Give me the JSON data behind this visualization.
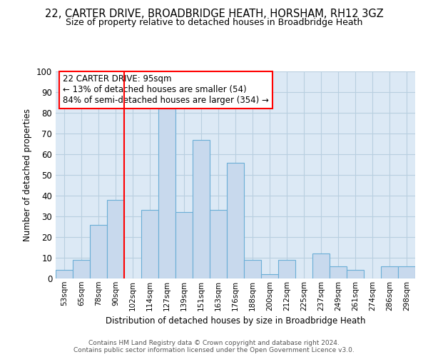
{
  "title1": "22, CARTER DRIVE, BROADBRIDGE HEATH, HORSHAM, RH12 3GZ",
  "title2": "Size of property relative to detached houses in Broadbridge Heath",
  "xlabel": "Distribution of detached houses by size in Broadbridge Heath",
  "ylabel": "Number of detached properties",
  "footer1": "Contains HM Land Registry data © Crown copyright and database right 2024.",
  "footer2": "Contains public sector information licensed under the Open Government Licence v3.0.",
  "bin_labels": [
    "53sqm",
    "65sqm",
    "78sqm",
    "90sqm",
    "102sqm",
    "114sqm",
    "127sqm",
    "139sqm",
    "151sqm",
    "163sqm",
    "176sqm",
    "188sqm",
    "200sqm",
    "212sqm",
    "225sqm",
    "237sqm",
    "249sqm",
    "261sqm",
    "274sqm",
    "286sqm",
    "298sqm"
  ],
  "bar_values": [
    4,
    9,
    26,
    38,
    0,
    33,
    82,
    32,
    67,
    33,
    56,
    9,
    2,
    9,
    0,
    12,
    6,
    4,
    0,
    6,
    6
  ],
  "bar_color": "#c8d9ed",
  "bar_edgecolor": "#6aaed6",
  "annotation_title": "22 CARTER DRIVE: 95sqm",
  "annotation_line1": "← 13% of detached houses are smaller (54)",
  "annotation_line2": "84% of semi-detached houses are larger (354) →",
  "red_line_x": 3.5,
  "ylim": [
    0,
    100
  ],
  "yticks": [
    0,
    10,
    20,
    30,
    40,
    50,
    60,
    70,
    80,
    90,
    100
  ],
  "bg_color": "#dce9f5",
  "plot_bg": "#ffffff",
  "grid_color": "#b8cfe0",
  "title1_fontsize": 10.5,
  "title2_fontsize": 9
}
